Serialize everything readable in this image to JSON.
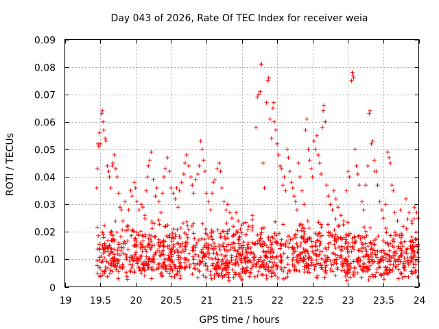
{
  "chart_data": {
    "type": "scatter",
    "title": "Day 043 of 2026, Rate Of TEC Index for receiver weia",
    "xlabel": "GPS time / hours",
    "ylabel": "ROTI / TECUs",
    "xlim": [
      19,
      24
    ],
    "ylim": [
      0,
      0.09
    ],
    "grid": true,
    "marker": "+",
    "color": "#ff0000",
    "x_ticks": [
      19,
      19.5,
      20,
      20.5,
      21,
      21.5,
      22,
      22.5,
      23,
      23.5,
      24
    ],
    "x_tick_labels": [
      "19",
      "19.5",
      "20",
      "20.5",
      "21",
      "21.5",
      "22",
      "22.5",
      "23",
      "23.5",
      "24"
    ],
    "y_ticks": [
      0,
      0.01,
      0.02,
      0.03,
      0.04,
      0.05,
      0.06,
      0.07,
      0.08,
      0.09
    ],
    "y_tick_labels": [
      "0",
      "0.01",
      "0.02",
      "0.03",
      "0.04",
      "0.05",
      "0.06",
      "0.07",
      "0.08",
      "0.09"
    ],
    "series": [
      {
        "name": "ROTI",
        "points": [
          [
            19.45,
            0.036
          ],
          [
            19.46,
            0.043
          ],
          [
            19.47,
            0.052
          ],
          [
            19.48,
            0.051
          ],
          [
            19.49,
            0.056
          ],
          [
            19.5,
            0.052
          ],
          [
            19.52,
            0.063
          ],
          [
            19.53,
            0.064
          ],
          [
            19.54,
            0.06
          ],
          [
            19.55,
            0.057
          ],
          [
            19.57,
            0.054
          ],
          [
            19.58,
            0.053
          ],
          [
            19.6,
            0.044
          ],
          [
            19.62,
            0.042
          ],
          [
            19.63,
            0.04
          ],
          [
            19.65,
            0.036
          ],
          [
            19.67,
            0.044
          ],
          [
            19.68,
            0.045
          ],
          [
            19.7,
            0.048
          ],
          [
            19.72,
            0.043
          ],
          [
            19.74,
            0.04
          ],
          [
            19.76,
            0.034
          ],
          [
            19.78,
            0.029
          ],
          [
            19.8,
            0.028
          ],
          [
            19.82,
            0.024
          ],
          [
            19.85,
            0.031
          ],
          [
            19.88,
            0.022
          ],
          [
            19.9,
            0.028
          ],
          [
            19.93,
            0.035
          ],
          [
            19.95,
            0.033
          ],
          [
            19.98,
            0.038
          ],
          [
            20.0,
            0.036
          ],
          [
            20.02,
            0.031
          ],
          [
            20.05,
            0.028
          ],
          [
            20.08,
            0.03
          ],
          [
            20.1,
            0.029
          ],
          [
            20.13,
            0.026
          ],
          [
            20.15,
            0.035
          ],
          [
            20.17,
            0.04
          ],
          [
            20.18,
            0.044
          ],
          [
            20.2,
            0.046
          ],
          [
            20.22,
            0.049
          ],
          [
            20.25,
            0.039
          ],
          [
            20.28,
            0.033
          ],
          [
            20.3,
            0.036
          ],
          [
            20.33,
            0.031
          ],
          [
            20.36,
            0.027
          ],
          [
            20.38,
            0.034
          ],
          [
            20.4,
            0.04
          ],
          [
            20.42,
            0.043
          ],
          [
            20.45,
            0.047
          ],
          [
            20.48,
            0.042
          ],
          [
            20.5,
            0.036
          ],
          [
            20.53,
            0.034
          ],
          [
            20.56,
            0.032
          ],
          [
            20.58,
            0.036
          ],
          [
            20.6,
            0.029
          ],
          [
            20.62,
            0.035
          ],
          [
            20.65,
            0.038
          ],
          [
            20.68,
            0.041
          ],
          [
            20.7,
            0.045
          ],
          [
            20.72,
            0.048
          ],
          [
            20.75,
            0.044
          ],
          [
            20.78,
            0.04
          ],
          [
            20.8,
            0.037
          ],
          [
            20.82,
            0.034
          ],
          [
            20.85,
            0.039
          ],
          [
            20.88,
            0.041
          ],
          [
            20.9,
            0.044
          ],
          [
            20.92,
            0.053
          ],
          [
            20.94,
            0.05
          ],
          [
            20.96,
            0.046
          ],
          [
            20.98,
            0.042
          ],
          [
            21.0,
            0.034
          ],
          [
            21.03,
            0.031
          ],
          [
            21.06,
            0.028
          ],
          [
            21.08,
            0.034
          ],
          [
            21.1,
            0.038
          ],
          [
            21.12,
            0.039
          ],
          [
            21.15,
            0.043
          ],
          [
            21.18,
            0.045
          ],
          [
            21.2,
            0.042
          ],
          [
            21.22,
            0.036
          ],
          [
            21.25,
            0.031
          ],
          [
            21.28,
            0.028
          ],
          [
            21.3,
            0.03
          ],
          [
            21.33,
            0.027
          ],
          [
            21.36,
            0.025
          ],
          [
            21.38,
            0.022
          ],
          [
            21.42,
            0.027
          ],
          [
            21.45,
            0.024
          ],
          [
            21.48,
            0.021
          ],
          [
            21.52,
            0.023
          ],
          [
            21.56,
            0.019
          ],
          [
            21.6,
            0.022
          ],
          [
            21.65,
            0.026
          ],
          [
            21.7,
            0.058
          ],
          [
            21.72,
            0.069
          ],
          [
            21.74,
            0.07
          ],
          [
            21.76,
            0.071
          ],
          [
            21.77,
            0.081
          ],
          [
            21.78,
            0.081
          ],
          [
            21.8,
            0.045
          ],
          [
            21.82,
            0.036
          ],
          [
            21.85,
            0.067
          ],
          [
            21.87,
            0.075
          ],
          [
            21.88,
            0.076
          ],
          [
            21.9,
            0.061
          ],
          [
            21.92,
            0.054
          ],
          [
            21.94,
            0.065
          ],
          [
            21.95,
            0.067
          ],
          [
            21.96,
            0.06
          ],
          [
            21.98,
            0.057
          ],
          [
            22.0,
            0.052
          ],
          [
            22.02,
            0.048
          ],
          [
            22.04,
            0.044
          ],
          [
            22.06,
            0.043
          ],
          [
            22.08,
            0.037
          ],
          [
            22.1,
            0.04
          ],
          [
            22.12,
            0.035
          ],
          [
            22.14,
            0.05
          ],
          [
            22.16,
            0.047
          ],
          [
            22.18,
            0.042
          ],
          [
            22.2,
            0.038
          ],
          [
            22.22,
            0.036
          ],
          [
            22.24,
            0.033
          ],
          [
            22.26,
            0.031
          ],
          [
            22.28,
            0.028
          ],
          [
            22.3,
            0.045
          ],
          [
            22.32,
            0.04
          ],
          [
            22.35,
            0.035
          ],
          [
            22.38,
            0.03
          ],
          [
            22.4,
            0.057
          ],
          [
            22.42,
            0.061
          ],
          [
            22.44,
            0.05
          ],
          [
            22.46,
            0.046
          ],
          [
            22.48,
            0.043
          ],
          [
            22.5,
            0.04
          ],
          [
            22.52,
            0.053
          ],
          [
            22.54,
            0.05
          ],
          [
            22.56,
            0.055
          ],
          [
            22.58,
            0.048
          ],
          [
            22.6,
            0.045
          ],
          [
            22.62,
            0.041
          ],
          [
            22.64,
            0.058
          ],
          [
            22.65,
            0.064
          ],
          [
            22.66,
            0.066
          ],
          [
            22.68,
            0.06
          ],
          [
            22.7,
            0.037
          ],
          [
            22.72,
            0.033
          ],
          [
            22.75,
            0.03
          ],
          [
            22.78,
            0.028
          ],
          [
            22.8,
            0.035
          ],
          [
            22.83,
            0.032
          ],
          [
            22.86,
            0.029
          ],
          [
            22.9,
            0.026
          ],
          [
            22.94,
            0.024
          ],
          [
            22.98,
            0.035
          ],
          [
            23.0,
            0.042
          ],
          [
            23.02,
            0.04
          ],
          [
            23.05,
            0.075
          ],
          [
            23.06,
            0.078
          ],
          [
            23.07,
            0.077
          ],
          [
            23.08,
            0.076
          ],
          [
            23.1,
            0.05
          ],
          [
            23.12,
            0.044
          ],
          [
            23.14,
            0.041
          ],
          [
            23.16,
            0.037
          ],
          [
            23.2,
            0.031
          ],
          [
            23.22,
            0.028
          ],
          [
            23.25,
            0.037
          ],
          [
            23.28,
            0.044
          ],
          [
            23.3,
            0.063
          ],
          [
            23.31,
            0.064
          ],
          [
            23.33,
            0.052
          ],
          [
            23.35,
            0.053
          ],
          [
            23.37,
            0.046
          ],
          [
            23.38,
            0.042
          ],
          [
            23.4,
            0.042
          ],
          [
            23.42,
            0.037
          ],
          [
            23.45,
            0.031
          ],
          [
            23.48,
            0.028
          ],
          [
            23.5,
            0.025
          ],
          [
            23.53,
            0.03
          ],
          [
            23.56,
            0.049
          ],
          [
            23.58,
            0.047
          ],
          [
            23.6,
            0.045
          ],
          [
            23.62,
            0.037
          ],
          [
            23.64,
            0.035
          ],
          [
            23.66,
            0.027
          ],
          [
            23.7,
            0.024
          ],
          [
            23.74,
            0.028
          ],
          [
            23.78,
            0.022
          ],
          [
            23.82,
            0.032
          ],
          [
            23.86,
            0.027
          ],
          [
            23.9,
            0.024
          ],
          [
            23.94,
            0.029
          ],
          [
            23.97,
            0.027
          ],
          [
            23.99,
            0.025
          ]
        ]
      }
    ],
    "dense_band": {
      "x_range": [
        19.45,
        24.0
      ],
      "y_min_range": [
        0.002,
        0.008
      ],
      "y_max_range": [
        0.016,
        0.025
      ],
      "approx_point_count": 1400
    }
  }
}
